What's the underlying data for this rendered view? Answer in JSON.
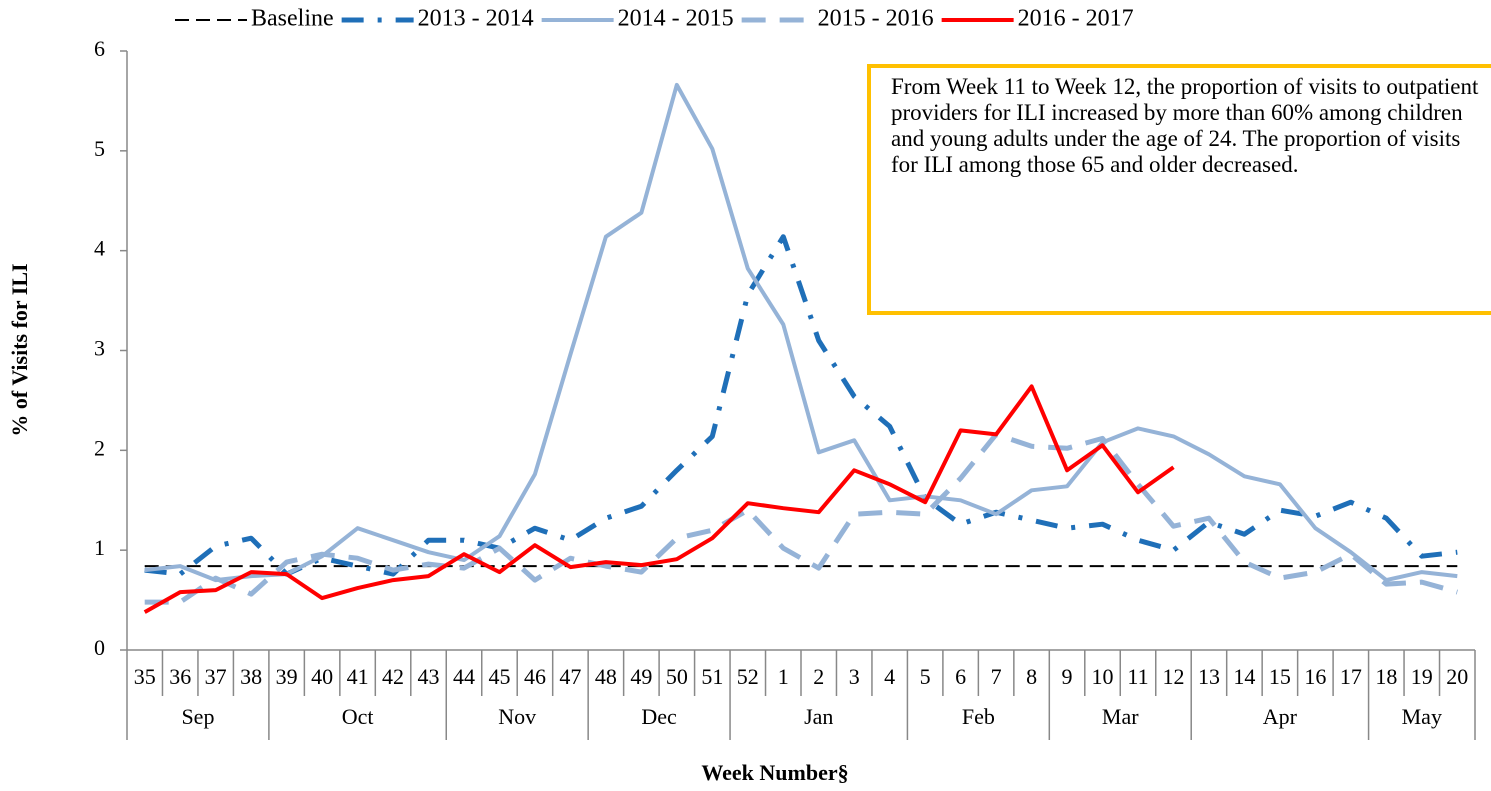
{
  "chart_data": {
    "type": "line",
    "y_label": "% of Visits for ILI",
    "x_label": "Week Number§",
    "annotation": "From Week 11 to Week 12, the proportion of visits to outpatient providers for ILI increased by more than 60% among children and young adults under the age of 24. The proportion of visits for ILI among those 65 and older decreased.",
    "categories": [
      "35",
      "36",
      "37",
      "38",
      "39",
      "40",
      "41",
      "42",
      "43",
      "44",
      "45",
      "46",
      "47",
      "48",
      "49",
      "50",
      "51",
      "52",
      "1",
      "2",
      "3",
      "4",
      "5",
      "6",
      "7",
      "8",
      "9",
      "10",
      "11",
      "12",
      "13",
      "14",
      "15",
      "16",
      "17",
      "18",
      "19",
      "20"
    ],
    "months": [
      "Sep",
      null,
      null,
      null,
      "Oct",
      null,
      null,
      null,
      null,
      "Nov",
      null,
      null,
      null,
      "Dec",
      null,
      null,
      null,
      "Jan",
      null,
      null,
      null,
      null,
      "Feb",
      null,
      null,
      null,
      "Mar",
      null,
      null,
      null,
      "Apr",
      null,
      null,
      null,
      null,
      "May",
      null,
      null
    ],
    "ylim": [
      0,
      6
    ],
    "yticks": [
      0,
      1,
      2,
      3,
      4,
      5,
      6
    ],
    "grid": false,
    "series": [
      {
        "name": "Baseline",
        "color": "#000000",
        "style": "dashed",
        "values": [
          0.84,
          0.84,
          0.84,
          0.84,
          0.84,
          0.84,
          0.84,
          0.84,
          0.84,
          0.84,
          0.84,
          0.84,
          0.84,
          0.84,
          0.84,
          0.84,
          0.84,
          0.84,
          0.84,
          0.84,
          0.84,
          0.84,
          0.84,
          0.84,
          0.84,
          0.84,
          0.84,
          0.84,
          0.84,
          0.84,
          0.84,
          0.84,
          0.84,
          0.84,
          0.84,
          0.84,
          0.84,
          0.84
        ]
      },
      {
        "name": "2013 - 2014",
        "color": "#1F6FB8",
        "style": "dashdot",
        "values": [
          0.8,
          0.76,
          1.04,
          1.12,
          0.76,
          0.92,
          0.84,
          0.76,
          1.1,
          1.1,
          1.02,
          1.22,
          1.1,
          1.32,
          1.44,
          1.8,
          2.14,
          3.56,
          4.14,
          3.1,
          2.54,
          2.24,
          1.52,
          1.26,
          1.38,
          1.3,
          1.22,
          1.26,
          1.1,
          1.0,
          1.28,
          1.16,
          1.4,
          1.34,
          1.48,
          1.32,
          0.94,
          0.98
        ]
      },
      {
        "name": "2014 - 2015",
        "color": "#95B3D7",
        "style": "solid",
        "values": [
          0.8,
          0.84,
          0.7,
          0.74,
          0.76,
          0.94,
          1.22,
          1.1,
          0.98,
          0.9,
          1.14,
          1.76,
          2.96,
          4.14,
          4.38,
          5.66,
          5.02,
          3.82,
          3.26,
          1.98,
          2.1,
          1.5,
          1.54,
          1.5,
          1.36,
          1.6,
          1.64,
          2.08,
          2.22,
          2.14,
          1.96,
          1.74,
          1.66,
          1.22,
          0.98,
          0.7,
          0.78,
          0.74
        ]
      },
      {
        "name": "2015 - 2016",
        "color": "#95B3D7",
        "style": "longdash",
        "values": [
          0.48,
          0.48,
          0.72,
          0.56,
          0.88,
          0.96,
          0.92,
          0.8,
          0.86,
          0.82,
          1.02,
          0.7,
          0.92,
          0.84,
          0.78,
          1.12,
          1.2,
          1.4,
          1.02,
          0.82,
          1.36,
          1.38,
          1.36,
          1.72,
          2.16,
          2.04,
          2.02,
          2.12,
          1.66,
          1.24,
          1.32,
          0.88,
          0.72,
          0.78,
          0.96,
          0.66,
          0.68,
          0.58
        ]
      },
      {
        "name": "2016 - 2017",
        "color": "#FF0000",
        "style": "solid",
        "values": [
          0.38,
          0.58,
          0.6,
          0.78,
          0.76,
          0.52,
          0.62,
          0.7,
          0.74,
          0.96,
          0.78,
          1.05,
          0.83,
          0.88,
          0.85,
          0.91,
          1.12,
          1.47,
          1.42,
          1.38,
          1.8,
          1.66,
          1.48,
          2.2,
          2.16,
          2.64,
          1.8,
          2.05,
          1.58,
          1.83,
          null,
          null,
          null,
          null,
          null,
          null,
          null,
          null
        ]
      }
    ]
  }
}
